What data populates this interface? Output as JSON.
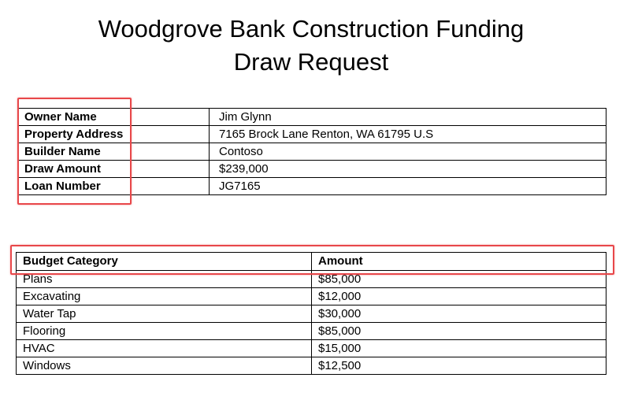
{
  "document": {
    "title_line1": "Woodgrove Bank Construction Funding",
    "title_line2": "Draw Request"
  },
  "info": {
    "rows": [
      {
        "label": "Owner Name",
        "value": "Jim Glynn"
      },
      {
        "label": "Property Address",
        "value": "7165 Brock Lane Renton, WA 61795 U.S"
      },
      {
        "label": "Builder Name",
        "value": "Contoso"
      },
      {
        "label": "Draw Amount",
        "value": "$239,000"
      },
      {
        "label": "Loan Number",
        "value": "JG7165"
      }
    ]
  },
  "budget": {
    "headers": {
      "category": "Budget Category",
      "amount": "Amount"
    },
    "rows": [
      {
        "category": "Plans",
        "amount": "$85,000"
      },
      {
        "category": "Excavating",
        "amount": "$12,000"
      },
      {
        "category": "Water Tap",
        "amount": "$30,000"
      },
      {
        "category": "Flooring",
        "amount": "$85,000"
      },
      {
        "category": "HVAC",
        "amount": "$15,000"
      },
      {
        "category": "Windows",
        "amount": "$12,500"
      }
    ]
  },
  "colors": {
    "highlight": "#e8474a"
  }
}
